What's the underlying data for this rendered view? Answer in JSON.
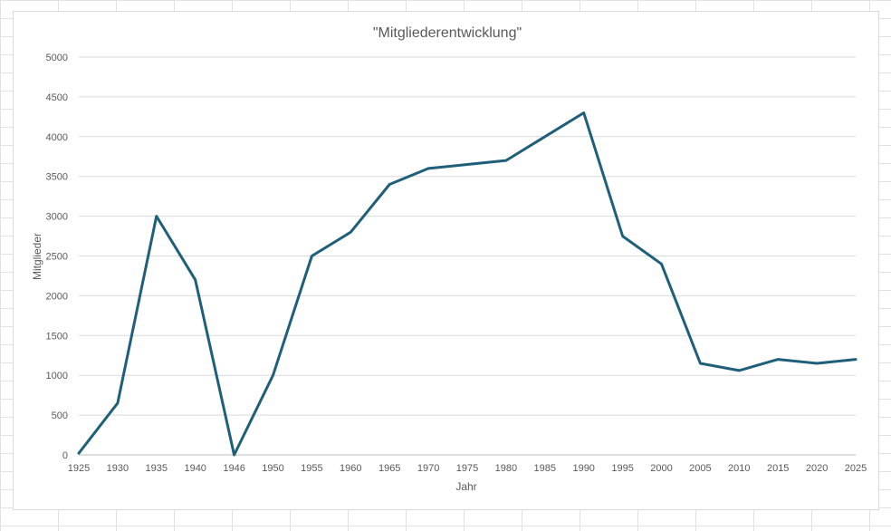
{
  "chart_data": {
    "type": "line",
    "title": "\"Mitgliederentwicklung\"",
    "xlabel": "Jahr",
    "ylabel": "Mitglieder",
    "categories": [
      "1925",
      "1930",
      "1935",
      "1940",
      "1946",
      "1950",
      "1955",
      "1960",
      "1965",
      "1970",
      "1975",
      "1980",
      "1985",
      "1990",
      "1995",
      "2000",
      "2005",
      "2010",
      "2015",
      "2020",
      "2025"
    ],
    "series": [
      {
        "values": [
          20,
          650,
          3000,
          2200,
          0,
          1000,
          2500,
          2800,
          3400,
          3600,
          3650,
          3700,
          4000,
          4300,
          2750,
          2400,
          1150,
          1060,
          1200,
          1150,
          1200
        ]
      }
    ],
    "ylim": [
      0,
      5000
    ],
    "yticks": [
      "0",
      "500",
      "1000",
      "1500",
      "2000",
      "2500",
      "3000",
      "3500",
      "4000",
      "4500",
      "5000"
    ],
    "grid": true,
    "legend": "none",
    "colors": {
      "line": "#1f5f7a",
      "grid": "#d9d9d9",
      "axis": "#bfbfbf",
      "text": "#595959"
    }
  }
}
